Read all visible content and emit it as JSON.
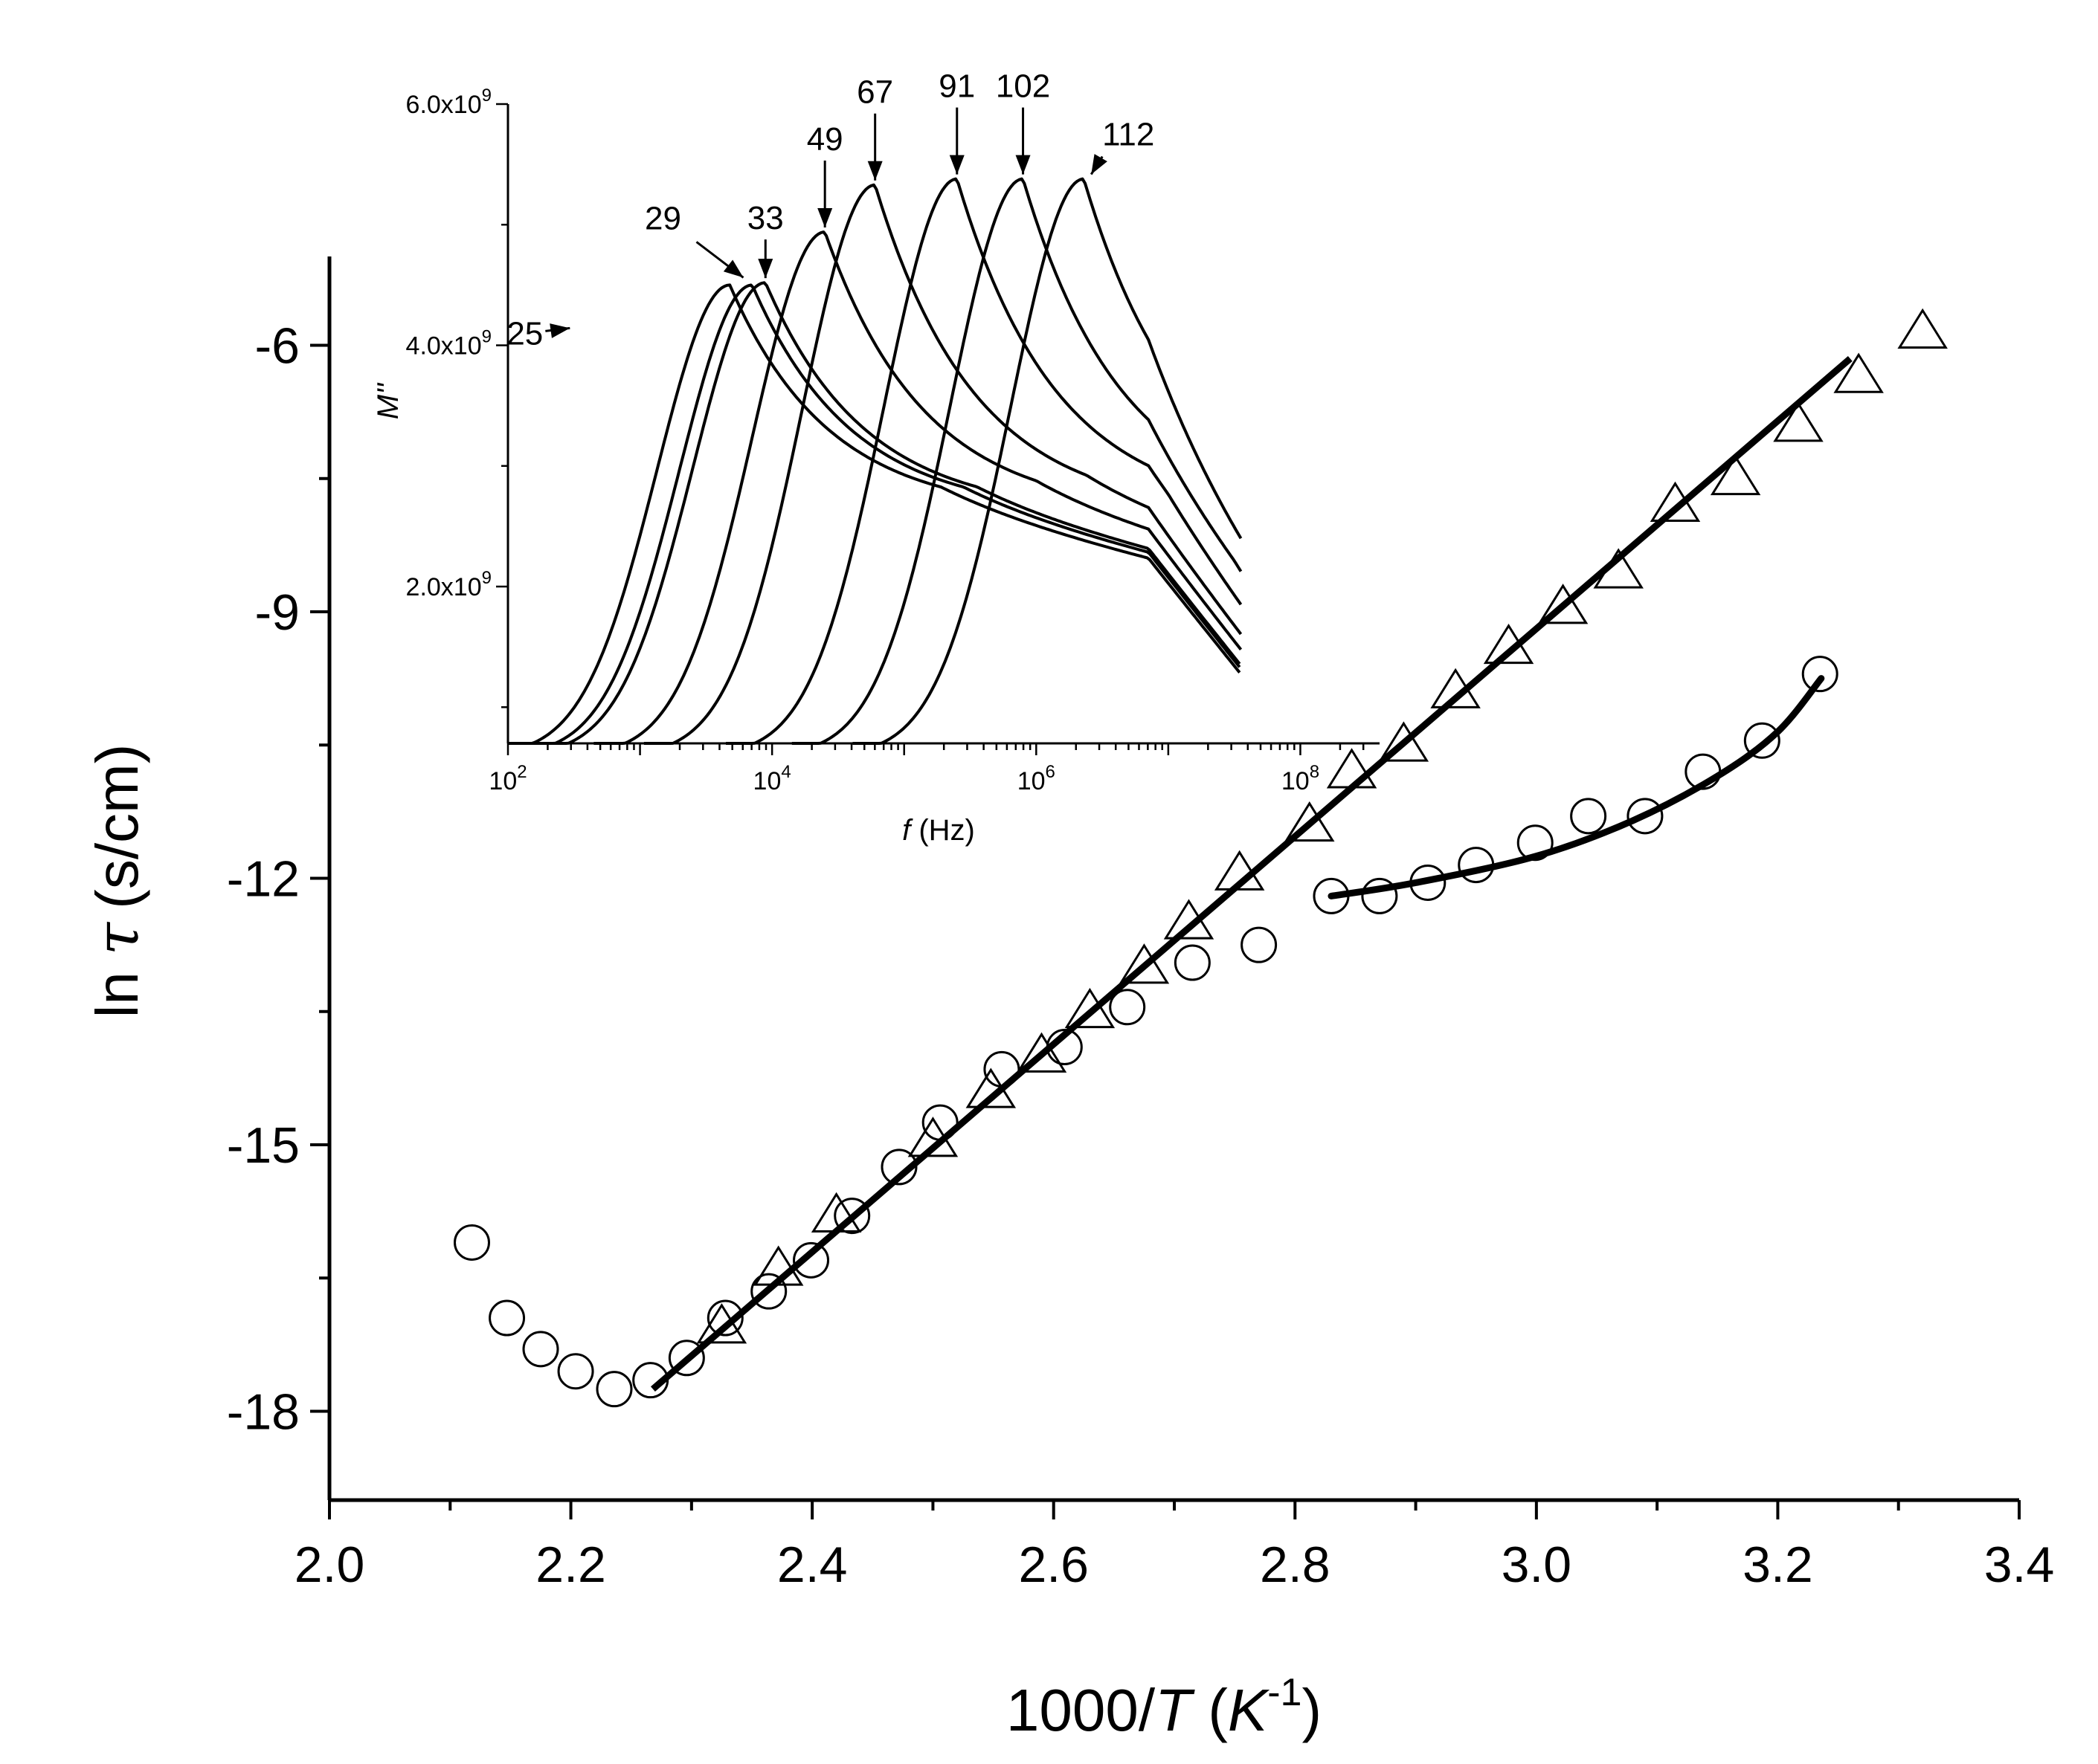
{
  "chart_data": [
    {
      "id": "main",
      "type": "scatter",
      "ylabel_prefix": "ln",
      "ylabel_symbol": "τ",
      "ylabel_unit": "(s/cm)",
      "xlabel_main": "1000/",
      "xlabel_T": "T",
      "xlabel_unit_open": " (",
      "xlabel_unit_K": "K",
      "xlabel_unit_exp": "-1",
      "xlabel_unit_close": ")",
      "xlim": [
        2.0,
        3.4
      ],
      "ylim": [
        -19.0,
        -5.0
      ],
      "xticks": [
        "2.0",
        "2.2",
        "2.4",
        "2.6",
        "2.8",
        "3.0",
        "3.2",
        "3.4"
      ],
      "xtick_values": [
        2.0,
        2.2,
        2.4,
        2.6,
        2.8,
        3.0,
        3.2,
        3.4
      ],
      "yticks": [
        "-6",
        "-9",
        "-12",
        "-15",
        "-18"
      ],
      "ytick_values": [
        -6,
        -9,
        -12,
        -15,
        -18
      ],
      "series": [
        {
          "name": "circles",
          "marker": "circle",
          "x": [
            2.118,
            2.147,
            2.175,
            2.204,
            2.236,
            2.266,
            2.296,
            2.328,
            2.364,
            2.399,
            2.433,
            2.472,
            2.506,
            2.557,
            2.609,
            2.661,
            2.715,
            2.77,
            2.83,
            2.87,
            2.91,
            2.95,
            2.999,
            3.043,
            3.09,
            3.138,
            3.187,
            3.235
          ],
          "y": [
            -16.1,
            -16.95,
            -17.3,
            -17.55,
            -17.75,
            -17.65,
            -17.4,
            -16.95,
            -16.65,
            -16.3,
            -15.8,
            -15.25,
            -14.75,
            -14.15,
            -13.9,
            -13.45,
            -12.95,
            -12.75,
            -12.2,
            -12.2,
            -12.05,
            -11.85,
            -11.6,
            -11.3,
            -11.3,
            -10.8,
            -10.45,
            -9.7
          ]
        },
        {
          "name": "triangles",
          "marker": "triangle",
          "x": [
            2.325,
            2.372,
            2.42,
            2.5,
            2.548,
            2.59,
            2.63,
            2.675,
            2.712,
            2.754,
            2.812,
            2.847,
            2.89,
            2.933,
            2.977,
            3.022,
            3.068,
            3.115,
            3.165,
            3.217,
            3.267,
            3.32
          ],
          "y": [
            -17.05,
            -16.4,
            -15.8,
            -14.95,
            -14.4,
            -14.0,
            -13.5,
            -13.0,
            -12.5,
            -11.95,
            -11.4,
            -10.8,
            -10.5,
            -9.9,
            -9.4,
            -8.95,
            -8.55,
            -7.8,
            -7.5,
            -6.9,
            -6.35,
            -5.85
          ]
        }
      ],
      "fits": [
        {
          "name": "linear-fit",
          "x": [
            2.268,
            3.26
          ],
          "y": [
            -17.75,
            -6.15
          ]
        },
        {
          "name": "curve-fit",
          "x": [
            2.83,
            2.9,
            3.0,
            3.08,
            3.15,
            3.2,
            3.236
          ],
          "y": [
            -12.2,
            -12.05,
            -11.75,
            -11.35,
            -10.85,
            -10.35,
            -9.75
          ]
        }
      ]
    },
    {
      "id": "inset",
      "type": "line",
      "ylabel": "M''",
      "xlabel_var": "f",
      "xlabel_unit": " (Hz)",
      "xscale": "log",
      "xlim_log10": [
        2,
        8.6
      ],
      "ylim": [
        700000000,
        6000000000
      ],
      "xticks_base": [
        "10",
        "10",
        "10",
        "10"
      ],
      "xticks_exp": [
        "2",
        "4",
        "6",
        "8"
      ],
      "xtick_log10": [
        2,
        4,
        6,
        8
      ],
      "yticks_mantissa": [
        "2.0x10",
        "4.0x10",
        "6.0x10"
      ],
      "yticks_exp": [
        "9",
        "9",
        "9"
      ],
      "ytick_values": [
        2000000000,
        4000000000,
        6000000000
      ],
      "yminor_values": [
        1000000000,
        3000000000,
        5000000000
      ],
      "series": [
        {
          "name": "25",
          "peak_log10f": 3.68,
          "peak_value": 4500000000
        },
        {
          "name": "29",
          "peak_log10f": 3.85,
          "peak_value": 4500000000
        },
        {
          "name": "33",
          "peak_log10f": 3.95,
          "peak_value": 4520000000
        },
        {
          "name": "49",
          "peak_log10f": 4.4,
          "peak_value": 4940000000
        },
        {
          "name": "67",
          "peak_log10f": 4.78,
          "peak_value": 5330000000
        },
        {
          "name": "91",
          "peak_log10f": 5.4,
          "peak_value": 5380000000
        },
        {
          "name": "102",
          "peak_log10f": 5.9,
          "peak_value": 5380000000
        },
        {
          "name": "112",
          "peak_log10f": 6.36,
          "peak_value": 5380000000
        }
      ],
      "annotations": [
        "25",
        "29",
        "33",
        "49",
        "67",
        "91",
        "102",
        "112"
      ]
    }
  ]
}
